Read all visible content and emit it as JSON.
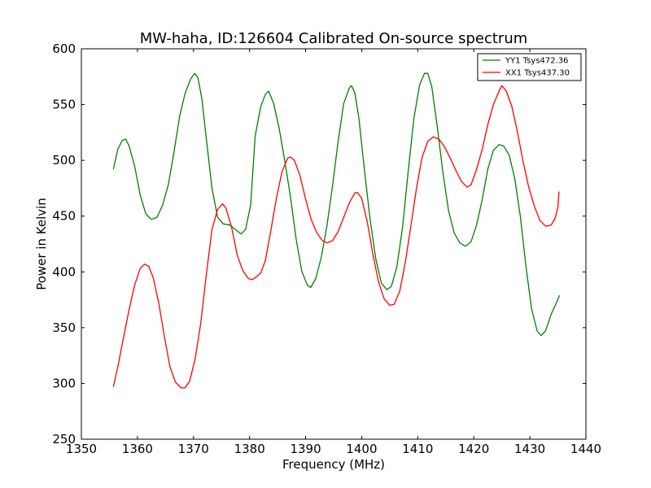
{
  "chart_data": {
    "type": "line",
    "title": "MW-haha, ID:126604 Calibrated On-source spectrum",
    "xlabel": "Frequency (MHz)",
    "ylabel": "Power in Kelvin",
    "xlim": [
      1350,
      1440
    ],
    "ylim": [
      250,
      600
    ],
    "x_ticks": [
      "1350",
      "1360",
      "1370",
      "1380",
      "1390",
      "1400",
      "1410",
      "1420",
      "1430",
      "1440"
    ],
    "y_ticks": [
      "250",
      "300",
      "350",
      "400",
      "450",
      "500",
      "550",
      "600"
    ],
    "grid": false,
    "legend_position": "top-right",
    "series": [
      {
        "name": "YY1 Tsys472.36",
        "color": "#008000",
        "points": [
          [
            1355.7,
            492
          ],
          [
            1356.5,
            510
          ],
          [
            1357.3,
            518
          ],
          [
            1357.9,
            519
          ],
          [
            1358.5,
            513
          ],
          [
            1359.5,
            495
          ],
          [
            1360.5,
            469
          ],
          [
            1361.5,
            452
          ],
          [
            1362.5,
            447
          ],
          [
            1363.5,
            449
          ],
          [
            1364.5,
            460
          ],
          [
            1365.5,
            478
          ],
          [
            1366.5,
            507
          ],
          [
            1367.5,
            539
          ],
          [
            1368.5,
            560
          ],
          [
            1369.5,
            573
          ],
          [
            1370.2,
            578
          ],
          [
            1370.8,
            574
          ],
          [
            1371.5,
            555
          ],
          [
            1372.3,
            519
          ],
          [
            1373.3,
            475
          ],
          [
            1374.3,
            449
          ],
          [
            1375.3,
            443
          ],
          [
            1376.5,
            442
          ],
          [
            1377.5,
            438
          ],
          [
            1378.5,
            434
          ],
          [
            1379.3,
            438
          ],
          [
            1380.2,
            460
          ],
          [
            1381.0,
            522
          ],
          [
            1382.0,
            548
          ],
          [
            1382.8,
            559
          ],
          [
            1383.4,
            562
          ],
          [
            1384.3,
            551
          ],
          [
            1385.3,
            528
          ],
          [
            1386.3,
            499
          ],
          [
            1387.3,
            467
          ],
          [
            1388.3,
            430
          ],
          [
            1389.3,
            401
          ],
          [
            1390.3,
            388
          ],
          [
            1390.9,
            386
          ],
          [
            1391.8,
            394
          ],
          [
            1392.8,
            413
          ],
          [
            1393.8,
            441
          ],
          [
            1394.8,
            477
          ],
          [
            1395.8,
            517
          ],
          [
            1396.8,
            551
          ],
          [
            1397.8,
            565
          ],
          [
            1398.2,
            567
          ],
          [
            1398.8,
            560
          ],
          [
            1399.5,
            538
          ],
          [
            1400.5,
            491
          ],
          [
            1401.5,
            447
          ],
          [
            1402.5,
            412
          ],
          [
            1403.5,
            390
          ],
          [
            1404.5,
            384
          ],
          [
            1405.3,
            387
          ],
          [
            1406.3,
            405
          ],
          [
            1407.3,
            440
          ],
          [
            1408.3,
            490
          ],
          [
            1409.3,
            537
          ],
          [
            1410.3,
            567
          ],
          [
            1411.2,
            578
          ],
          [
            1411.8,
            578
          ],
          [
            1412.5,
            566
          ],
          [
            1413.5,
            530
          ],
          [
            1414.5,
            489
          ],
          [
            1415.5,
            455
          ],
          [
            1416.5,
            435
          ],
          [
            1417.5,
            426
          ],
          [
            1418.5,
            423
          ],
          [
            1419.5,
            427
          ],
          [
            1420.5,
            442
          ],
          [
            1421.5,
            465
          ],
          [
            1422.5,
            492
          ],
          [
            1423.5,
            509
          ],
          [
            1424.5,
            514
          ],
          [
            1425.3,
            513
          ],
          [
            1426.3,
            505
          ],
          [
            1427.3,
            484
          ],
          [
            1428.3,
            450
          ],
          [
            1429.3,
            405
          ],
          [
            1430.3,
            367
          ],
          [
            1431.3,
            347
          ],
          [
            1432.0,
            343
          ],
          [
            1432.8,
            347
          ],
          [
            1433.8,
            362
          ],
          [
            1434.8,
            373
          ],
          [
            1435.3,
            379
          ]
        ]
      },
      {
        "name": "XX1 Tsys437.30",
        "color": "#ff0000",
        "points": [
          [
            1355.7,
            297
          ],
          [
            1356.5,
            315
          ],
          [
            1357.5,
            341
          ],
          [
            1358.5,
            366
          ],
          [
            1359.5,
            388
          ],
          [
            1360.5,
            403
          ],
          [
            1361.3,
            407
          ],
          [
            1362.0,
            405
          ],
          [
            1362.8,
            395
          ],
          [
            1363.8,
            372
          ],
          [
            1364.8,
            342
          ],
          [
            1365.8,
            315
          ],
          [
            1366.8,
            301
          ],
          [
            1367.8,
            296
          ],
          [
            1368.5,
            296
          ],
          [
            1369.3,
            302
          ],
          [
            1370.3,
            322
          ],
          [
            1371.3,
            354
          ],
          [
            1372.3,
            398
          ],
          [
            1373.3,
            438
          ],
          [
            1374.3,
            456
          ],
          [
            1375.2,
            461
          ],
          [
            1375.8,
            457
          ],
          [
            1376.8,
            440
          ],
          [
            1377.8,
            415
          ],
          [
            1378.8,
            401
          ],
          [
            1379.8,
            394
          ],
          [
            1380.5,
            393
          ],
          [
            1381.3,
            396
          ],
          [
            1382.0,
            399
          ],
          [
            1382.8,
            410
          ],
          [
            1383.8,
            437
          ],
          [
            1384.8,
            466
          ],
          [
            1385.8,
            490
          ],
          [
            1386.8,
            502
          ],
          [
            1387.3,
            503
          ],
          [
            1388.0,
            500
          ],
          [
            1389.0,
            486
          ],
          [
            1390.0,
            465
          ],
          [
            1391.0,
            447
          ],
          [
            1392.0,
            435
          ],
          [
            1393.0,
            428
          ],
          [
            1393.8,
            426
          ],
          [
            1394.8,
            428
          ],
          [
            1395.8,
            436
          ],
          [
            1396.8,
            449
          ],
          [
            1397.8,
            462
          ],
          [
            1398.8,
            471
          ],
          [
            1399.3,
            471
          ],
          [
            1400.0,
            466
          ],
          [
            1401.0,
            445
          ],
          [
            1402.0,
            416
          ],
          [
            1403.0,
            391
          ],
          [
            1404.0,
            376
          ],
          [
            1405.0,
            370
          ],
          [
            1405.8,
            371
          ],
          [
            1406.8,
            383
          ],
          [
            1407.8,
            409
          ],
          [
            1408.8,
            442
          ],
          [
            1409.8,
            476
          ],
          [
            1410.8,
            503
          ],
          [
            1411.8,
            517
          ],
          [
            1412.8,
            521
          ],
          [
            1413.8,
            519
          ],
          [
            1414.8,
            512
          ],
          [
            1415.8,
            502
          ],
          [
            1416.8,
            491
          ],
          [
            1417.8,
            481
          ],
          [
            1418.8,
            476
          ],
          [
            1419.5,
            478
          ],
          [
            1420.5,
            492
          ],
          [
            1421.5,
            510
          ],
          [
            1422.5,
            532
          ],
          [
            1423.5,
            550
          ],
          [
            1424.5,
            562
          ],
          [
            1425.0,
            567
          ],
          [
            1425.8,
            562
          ],
          [
            1426.8,
            548
          ],
          [
            1427.8,
            525
          ],
          [
            1428.8,
            499
          ],
          [
            1429.8,
            476
          ],
          [
            1430.8,
            459
          ],
          [
            1431.8,
            446
          ],
          [
            1432.8,
            441
          ],
          [
            1433.8,
            442
          ],
          [
            1434.5,
            448
          ],
          [
            1435.0,
            458
          ],
          [
            1435.2,
            472
          ]
        ]
      }
    ]
  }
}
